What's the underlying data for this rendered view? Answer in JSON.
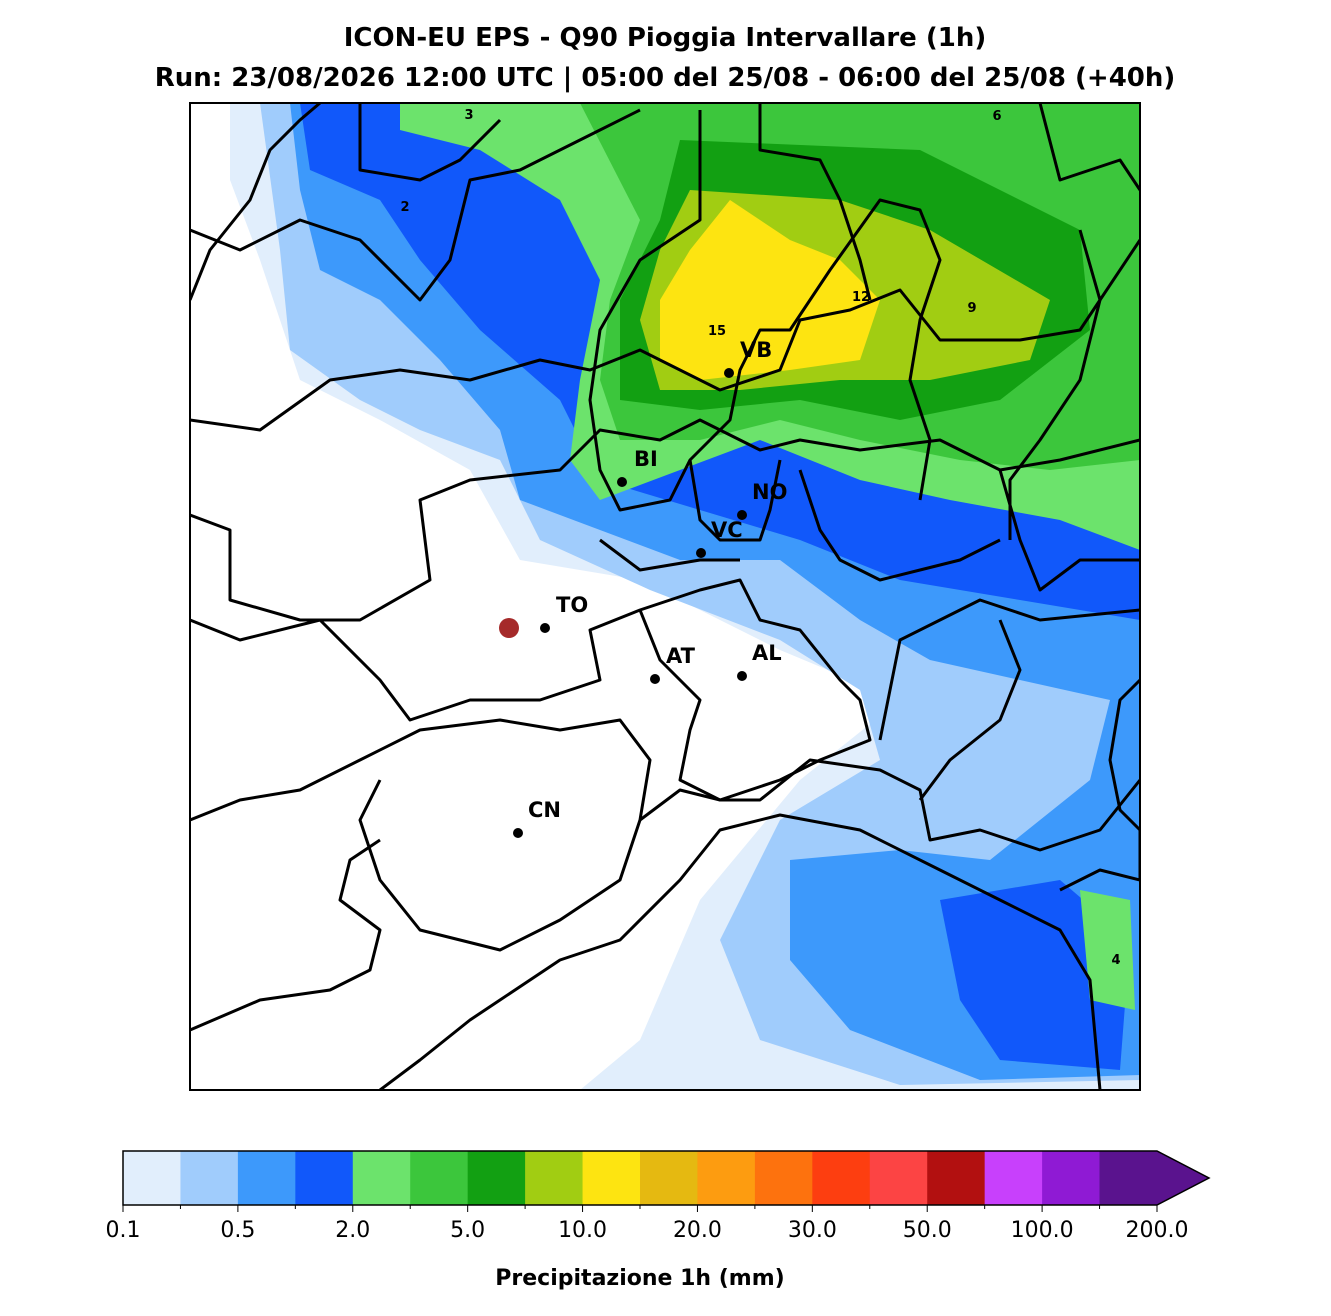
{
  "header": {
    "title": "ICON-EU EPS - Q90 Pioggia Intervallare (1h)",
    "subtitle": "Run: 23/08/2026 12:00 UTC | 05:00 del 25/08 - 06:00 del 25/08 (+40h)"
  },
  "cities": [
    "VB",
    "BI",
    "NO",
    "VC",
    "TO",
    "AT",
    "AL",
    "CN"
  ],
  "contour_labels": [
    "3",
    "6",
    "2",
    "12",
    "9",
    "15",
    "4"
  ],
  "colorbar": {
    "label": "Precipitazione 1h (mm)",
    "colors": [
      "#e1eefc",
      "#a0ccfc",
      "#3d99fb",
      "#1158fa",
      "#6ce36c",
      "#3cc63c",
      "#12a012",
      "#a1cd12",
      "#fde411",
      "#e5b911",
      "#fd9c10",
      "#fd720e",
      "#fd3e10",
      "#fc4444",
      "#b21010",
      "#c840fc",
      "#8f1ad4",
      "#5a138e"
    ],
    "ticks": [
      "0.1",
      "0.5",
      "2.0",
      "5.0",
      "10.0",
      "20.0",
      "30.0",
      "50.0",
      "100.0",
      "200.0"
    ]
  }
}
